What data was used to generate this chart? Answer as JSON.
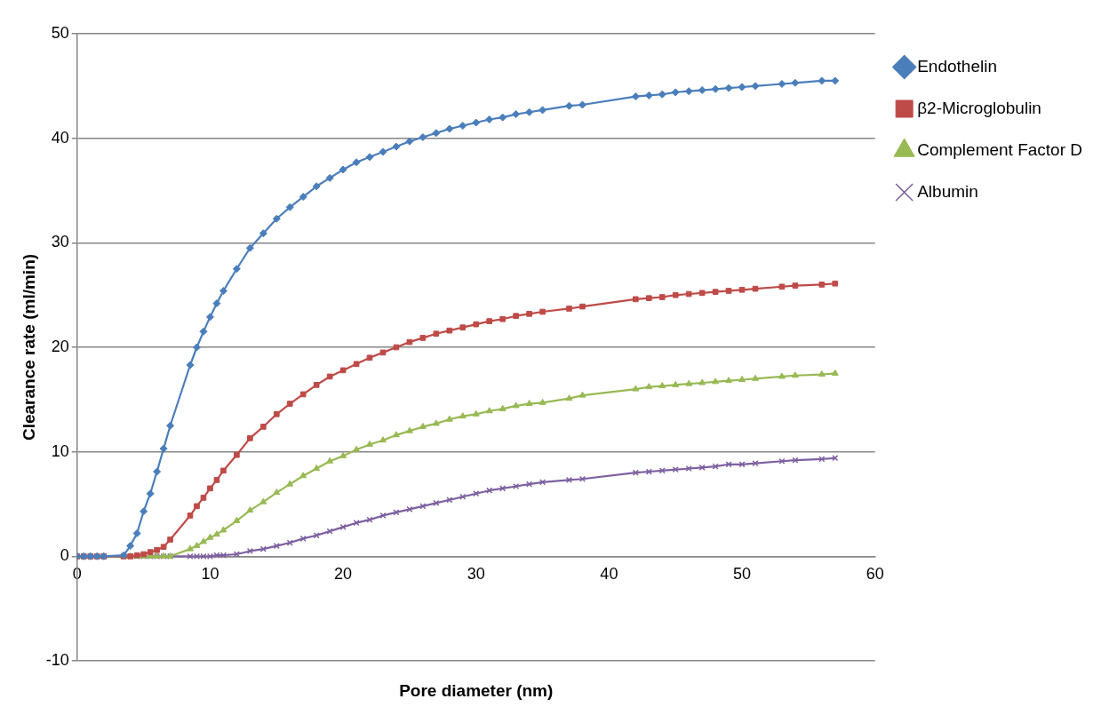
{
  "chart_data": {
    "type": "line",
    "xlabel": "Pore diameter (nm)",
    "ylabel": "Clearance rate (ml/min)",
    "x": [
      0,
      0.5,
      1,
      1.5,
      2,
      3.5,
      4,
      4.5,
      5,
      5.5,
      6,
      6.5,
      7,
      8.5,
      9,
      9.5,
      10,
      10.5,
      11,
      12,
      13,
      14,
      15,
      16,
      17,
      18,
      19,
      20,
      21,
      22,
      23,
      24,
      25,
      26,
      27,
      28,
      29,
      30,
      31,
      32,
      33,
      34,
      35,
      37,
      38,
      42,
      43,
      44,
      45,
      46,
      47,
      48,
      49,
      50,
      51,
      53,
      54,
      56,
      57
    ],
    "series": [
      {
        "name": "Endothelin",
        "color": "#4a7ebb",
        "marker": "diamond",
        "values": [
          0,
          0,
          0,
          0,
          0,
          0.1,
          1.0,
          2.2,
          4.3,
          6.0,
          8.1,
          10.3,
          12.5,
          18.3,
          20.0,
          21.5,
          22.9,
          24.2,
          25.4,
          27.5,
          29.5,
          30.9,
          32.3,
          33.4,
          34.4,
          35.4,
          36.2,
          37.0,
          37.7,
          38.2,
          38.7,
          39.2,
          39.7,
          40.1,
          40.5,
          40.9,
          41.2,
          41.5,
          41.8,
          42.0,
          42.3,
          42.5,
          42.7,
          43.1,
          43.2,
          44.0,
          44.1,
          44.2,
          44.4,
          44.5,
          44.6,
          44.7,
          44.8,
          44.9,
          45.0,
          45.2,
          45.3,
          45.5,
          45.5
        ]
      },
      {
        "name": "β2-Microglobulin",
        "color": "#be4b48",
        "marker": "square",
        "values": [
          0,
          0,
          0,
          0,
          0,
          0,
          0,
          0.1,
          0.2,
          0.4,
          0.6,
          0.9,
          1.6,
          3.9,
          4.8,
          5.6,
          6.5,
          7.3,
          8.2,
          9.7,
          11.3,
          12.4,
          13.6,
          14.6,
          15.5,
          16.4,
          17.2,
          17.8,
          18.4,
          19.0,
          19.5,
          20.0,
          20.5,
          20.9,
          21.3,
          21.6,
          21.9,
          22.2,
          22.5,
          22.7,
          23.0,
          23.2,
          23.4,
          23.7,
          23.9,
          24.6,
          24.7,
          24.8,
          25.0,
          25.1,
          25.2,
          25.3,
          25.4,
          25.5,
          25.6,
          25.8,
          25.9,
          26.0,
          26.1
        ]
      },
      {
        "name": "Complement Factor D",
        "color": "#98b954",
        "marker": "triangle",
        "values": [
          0,
          0,
          0,
          0,
          0,
          0,
          0,
          0,
          0,
          0,
          0,
          0,
          0,
          0.7,
          1.0,
          1.4,
          1.8,
          2.1,
          2.5,
          3.4,
          4.4,
          5.2,
          6.1,
          6.9,
          7.7,
          8.4,
          9.1,
          9.6,
          10.2,
          10.7,
          11.1,
          11.6,
          12.0,
          12.4,
          12.7,
          13.1,
          13.4,
          13.6,
          13.9,
          14.1,
          14.4,
          14.6,
          14.7,
          15.1,
          15.4,
          16.0,
          16.2,
          16.3,
          16.4,
          16.5,
          16.6,
          16.7,
          16.8,
          16.9,
          17.0,
          17.2,
          17.3,
          17.4,
          17.5
        ]
      },
      {
        "name": "Albumin",
        "color": "#7d60a0",
        "marker": "cross",
        "values": [
          0,
          0,
          0,
          0,
          0,
          0,
          0,
          0,
          0,
          0,
          0,
          0,
          0,
          0,
          0,
          0,
          0,
          0.1,
          0.1,
          0.2,
          0.5,
          0.7,
          1.0,
          1.3,
          1.7,
          2.0,
          2.4,
          2.8,
          3.2,
          3.5,
          3.9,
          4.2,
          4.5,
          4.8,
          5.1,
          5.4,
          5.7,
          6.0,
          6.3,
          6.5,
          6.7,
          6.9,
          7.1,
          7.3,
          7.4,
          8.0,
          8.1,
          8.2,
          8.3,
          8.4,
          8.5,
          8.6,
          8.8,
          8.8,
          8.9,
          9.1,
          9.2,
          9.3,
          9.4
        ]
      }
    ],
    "xlim": [
      0,
      60
    ],
    "xticks": [
      0,
      10,
      20,
      30,
      40,
      50,
      60
    ],
    "ylim": [
      -10,
      50
    ],
    "yticks": [
      -10,
      0,
      10,
      20,
      30,
      40,
      50
    ],
    "grid": "y",
    "legend": "right",
    "line_style": "solid"
  }
}
